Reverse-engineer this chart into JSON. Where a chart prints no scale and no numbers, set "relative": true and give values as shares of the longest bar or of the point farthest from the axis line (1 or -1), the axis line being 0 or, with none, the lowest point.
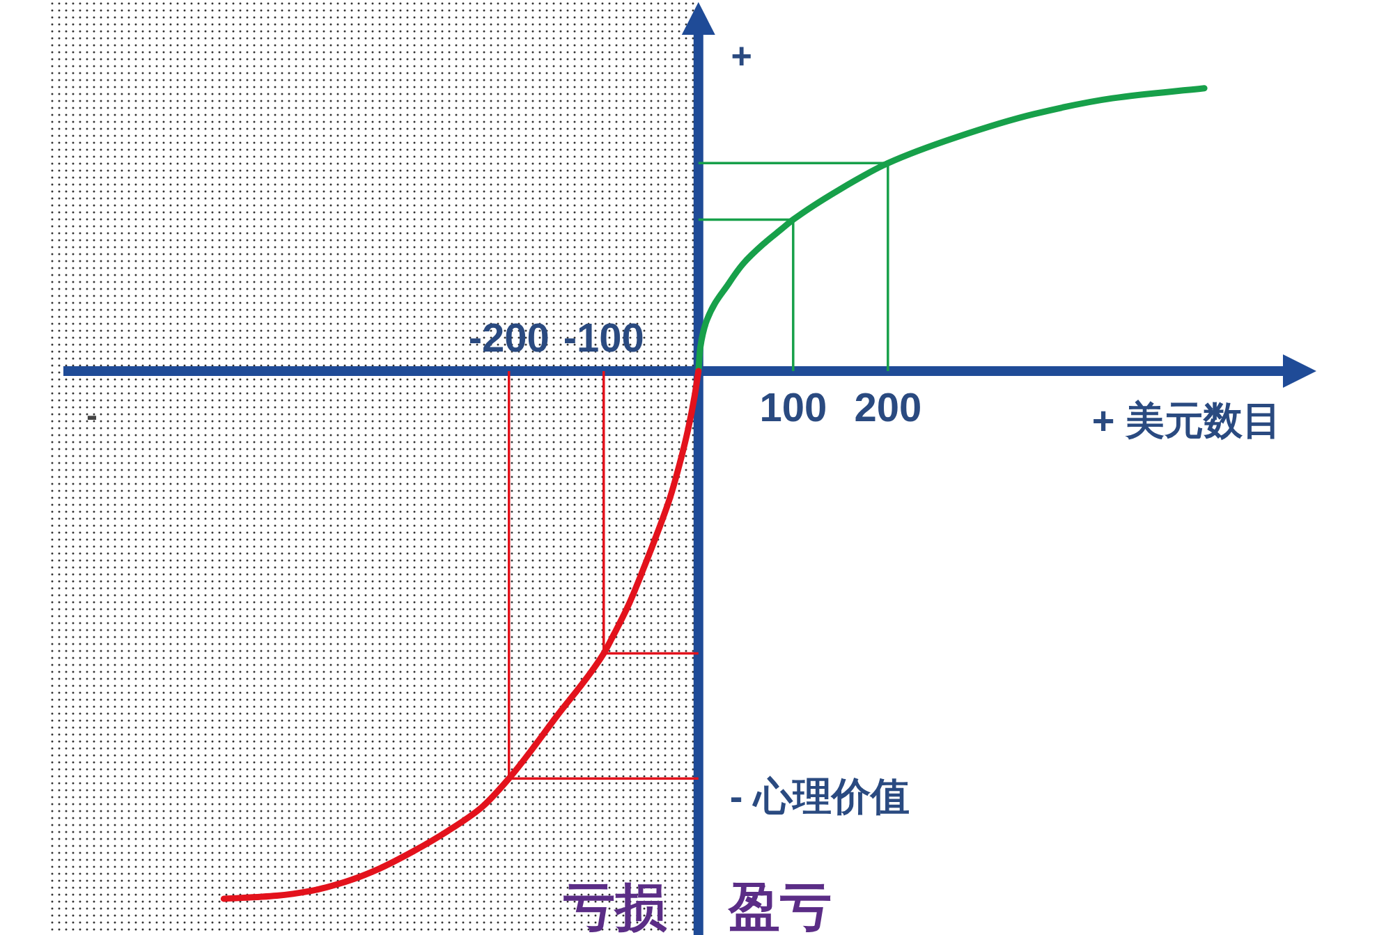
{
  "chart_data": {
    "type": "line",
    "relative": true,
    "xlabel": "+ 美元数目",
    "ylabel": "- 心理价值",
    "annotations": [
      "+",
      "-",
      "亏损",
      "盈亏"
    ],
    "xlim": [
      -688,
      642
    ],
    "xticks": [
      100,
      200
    ],
    "x2lim": [
      -688,
      642
    ],
    "x2ticks": [
      -200,
      -100
    ],
    "bands": [
      {
        "axis": "x",
        "from": -688,
        "to": 0,
        "color": "#333333"
      }
    ],
    "ref_lines": [
      {
        "axis": "x",
        "value": 0,
        "color": "#1f4b97"
      }
    ],
    "series": [
      {
        "color": "#17a04a",
        "x": [
          100,
          100,
          0
        ],
        "values": [
          0,
          0.287,
          0.287
        ]
      },
      {
        "color": "#17a04a",
        "x": [
          200,
          200,
          0
        ],
        "values": [
          0,
          0.394,
          0.394
        ]
      },
      {
        "color": "#e3121c",
        "x": [
          -100,
          -100,
          0
        ],
        "values": [
          0,
          -0.535,
          -0.535
        ]
      },
      {
        "color": "#e3121c",
        "x": [
          -200,
          -200,
          0
        ],
        "values": [
          0,
          -0.772,
          -0.772
        ]
      },
      {
        "color": "#17a04a",
        "x": [
          0,
          2,
          9,
          32,
          47,
          70,
          87,
          100,
          148,
          200,
          272,
          354,
          437,
          534
        ],
        "values": [
          0,
          0.045,
          0.097,
          0.166,
          0.203,
          0.243,
          0.268,
          0.287,
          0.343,
          0.394,
          0.443,
          0.487,
          0.517,
          0.536
        ]
      },
      {
        "color": "#e3121c",
        "x": [
          -501,
          -445,
          -409,
          -373,
          -337,
          -301,
          -265,
          -229,
          -200,
          -150,
          -100,
          -91,
          -73,
          -57,
          -43,
          -30,
          -20,
          -11,
          -4,
          0
        ],
        "values": [
          -1,
          -0.994,
          -0.985,
          -0.968,
          -0.943,
          -0.91,
          -0.872,
          -0.827,
          -0.772,
          -0.655,
          -0.535,
          -0.505,
          -0.44,
          -0.37,
          -0.305,
          -0.24,
          -0.177,
          -0.111,
          -0.047,
          0
        ]
      }
    ]
  }
}
